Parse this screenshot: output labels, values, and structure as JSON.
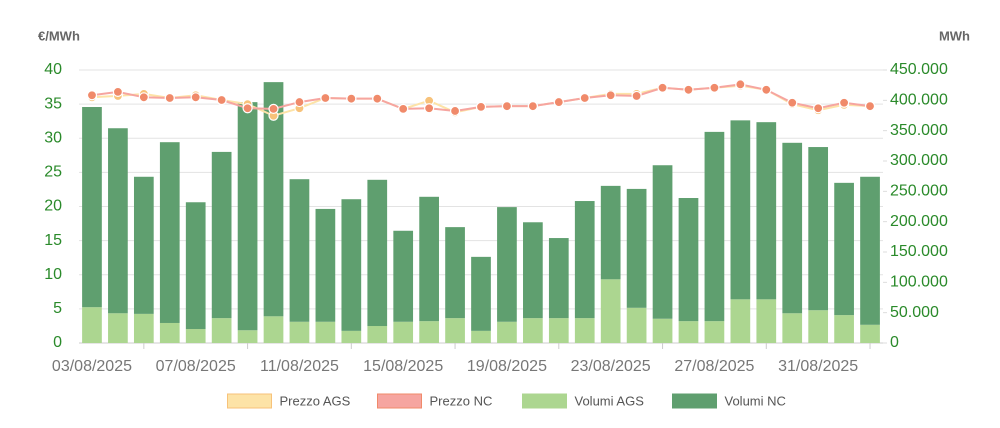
{
  "chart_data": {
    "type": "bar",
    "y_label": "€/MWh",
    "y2_label": "MWh",
    "categories": [
      "03/08/2025",
      null,
      null,
      null,
      "07/08/2025",
      null,
      null,
      null,
      "11/08/2025",
      null,
      null,
      null,
      "15/08/2025",
      null,
      null,
      null,
      "19/08/2025",
      null,
      null,
      null,
      "23/08/2025",
      null,
      null,
      null,
      "27/08/2025",
      null,
      null,
      null,
      "31/08/2025",
      null,
      null
    ],
    "ylim": [
      0,
      40
    ],
    "yticks": [
      0,
      5,
      10,
      15,
      20,
      25,
      30,
      35,
      40
    ],
    "y2lim": [
      0,
      450000
    ],
    "y2ticks": [
      0,
      {
        "value": 50000,
        "label": "50.000"
      },
      {
        "value": 100000,
        "label": "100.000"
      },
      {
        "value": 150000,
        "label": "150.000"
      },
      {
        "value": 200000,
        "label": "200.000"
      },
      {
        "value": 250000,
        "label": "250.000"
      },
      {
        "value": 300000,
        "label": "300.000"
      },
      {
        "value": 350000,
        "label": "350.000"
      },
      {
        "value": 400000,
        "label": "400.000"
      },
      {
        "value": 450000,
        "label": "450.000"
      }
    ],
    "grid": true,
    "legend": "bottom",
    "series": [
      {
        "name": "Prezzo AGS",
        "type": "line",
        "axis": "y",
        "color": "#fde3a7",
        "values": [
          36.0,
          36.2,
          36.5,
          35.9,
          36.3,
          35.6,
          35.0,
          33.3,
          34.4,
          35.9,
          35.8,
          35.8,
          34.3,
          35.5,
          33.8,
          34.6,
          34.7,
          34.7,
          35.3,
          35.9,
          36.5,
          36.5,
          37.4,
          37.1,
          37.4,
          37.7,
          37.1,
          35.0,
          34.1,
          34.9,
          34.7
        ]
      },
      {
        "name": "Prezzo NC",
        "type": "line",
        "axis": "y",
        "color": "#f6a5a0",
        "values": [
          36.3,
          36.8,
          36.0,
          35.9,
          36.0,
          35.6,
          34.4,
          34.3,
          35.3,
          35.9,
          35.8,
          35.8,
          34.3,
          34.4,
          34.0,
          34.6,
          34.7,
          34.7,
          35.3,
          35.9,
          36.3,
          36.2,
          37.4,
          37.1,
          37.4,
          37.9,
          37.1,
          35.2,
          34.4,
          35.2,
          34.7
        ]
      },
      {
        "name": "Volumi AGS",
        "type": "bar",
        "axis": "y2",
        "color": "#acd690",
        "values": [
          59000,
          49000,
          48000,
          33000,
          23000,
          41000,
          21000,
          44000,
          35000,
          35000,
          20000,
          28000,
          35000,
          36000,
          41000,
          20000,
          35000,
          41000,
          41000,
          41000,
          105000,
          58000,
          40000,
          36000,
          36000,
          72000,
          72000,
          49000,
          54000,
          46000,
          30000
        ]
      },
      {
        "name": "Volumi NC",
        "type": "bar",
        "axis": "y2",
        "color": "#5f9f6f",
        "values": [
          330000,
          305000,
          226000,
          298000,
          209000,
          274000,
          376000,
          386000,
          235000,
          186000,
          217000,
          241000,
          150000,
          205000,
          150000,
          122000,
          189000,
          158000,
          132000,
          193000,
          154000,
          196000,
          253000,
          203000,
          312000,
          295000,
          292000,
          281000,
          269000,
          218000,
          244000
        ]
      }
    ]
  }
}
